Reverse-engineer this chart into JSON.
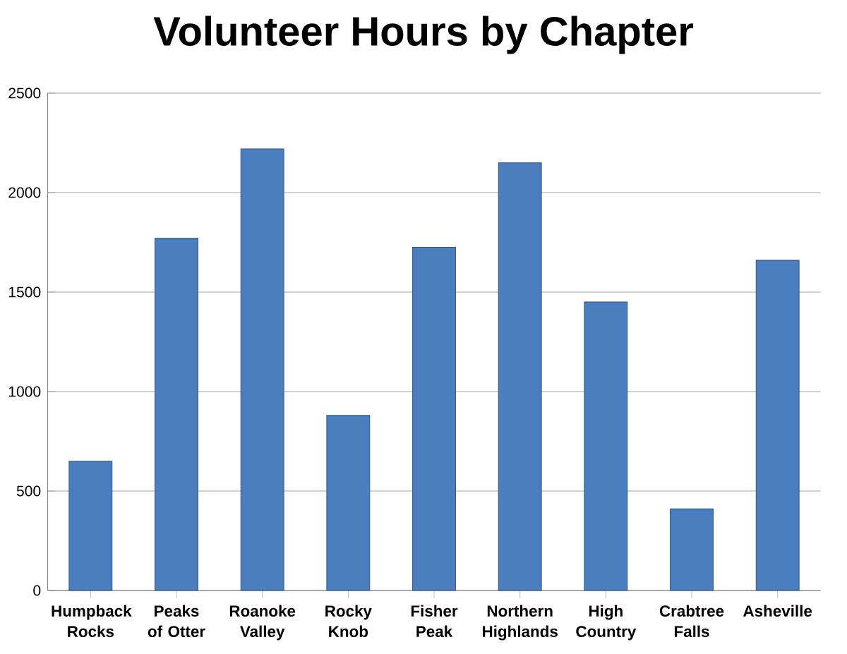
{
  "chart_data": {
    "type": "bar",
    "title": "Volunteer Hours by Chapter",
    "categories": [
      "Humpback Rocks",
      "Peaks of Otter",
      "Roanoke Valley",
      "Rocky Knob",
      "Fisher Peak",
      "Northern Highlands",
      "High Country",
      "Crabtree Falls",
      "Asheville"
    ],
    "values": [
      650,
      1770,
      2220,
      880,
      1725,
      2150,
      1450,
      410,
      1660
    ],
    "color": "#4a7ebf",
    "ylim": [
      0,
      2500
    ],
    "yticks": [
      0,
      500,
      1000,
      1500,
      2000,
      2500
    ],
    "grid": "y"
  }
}
